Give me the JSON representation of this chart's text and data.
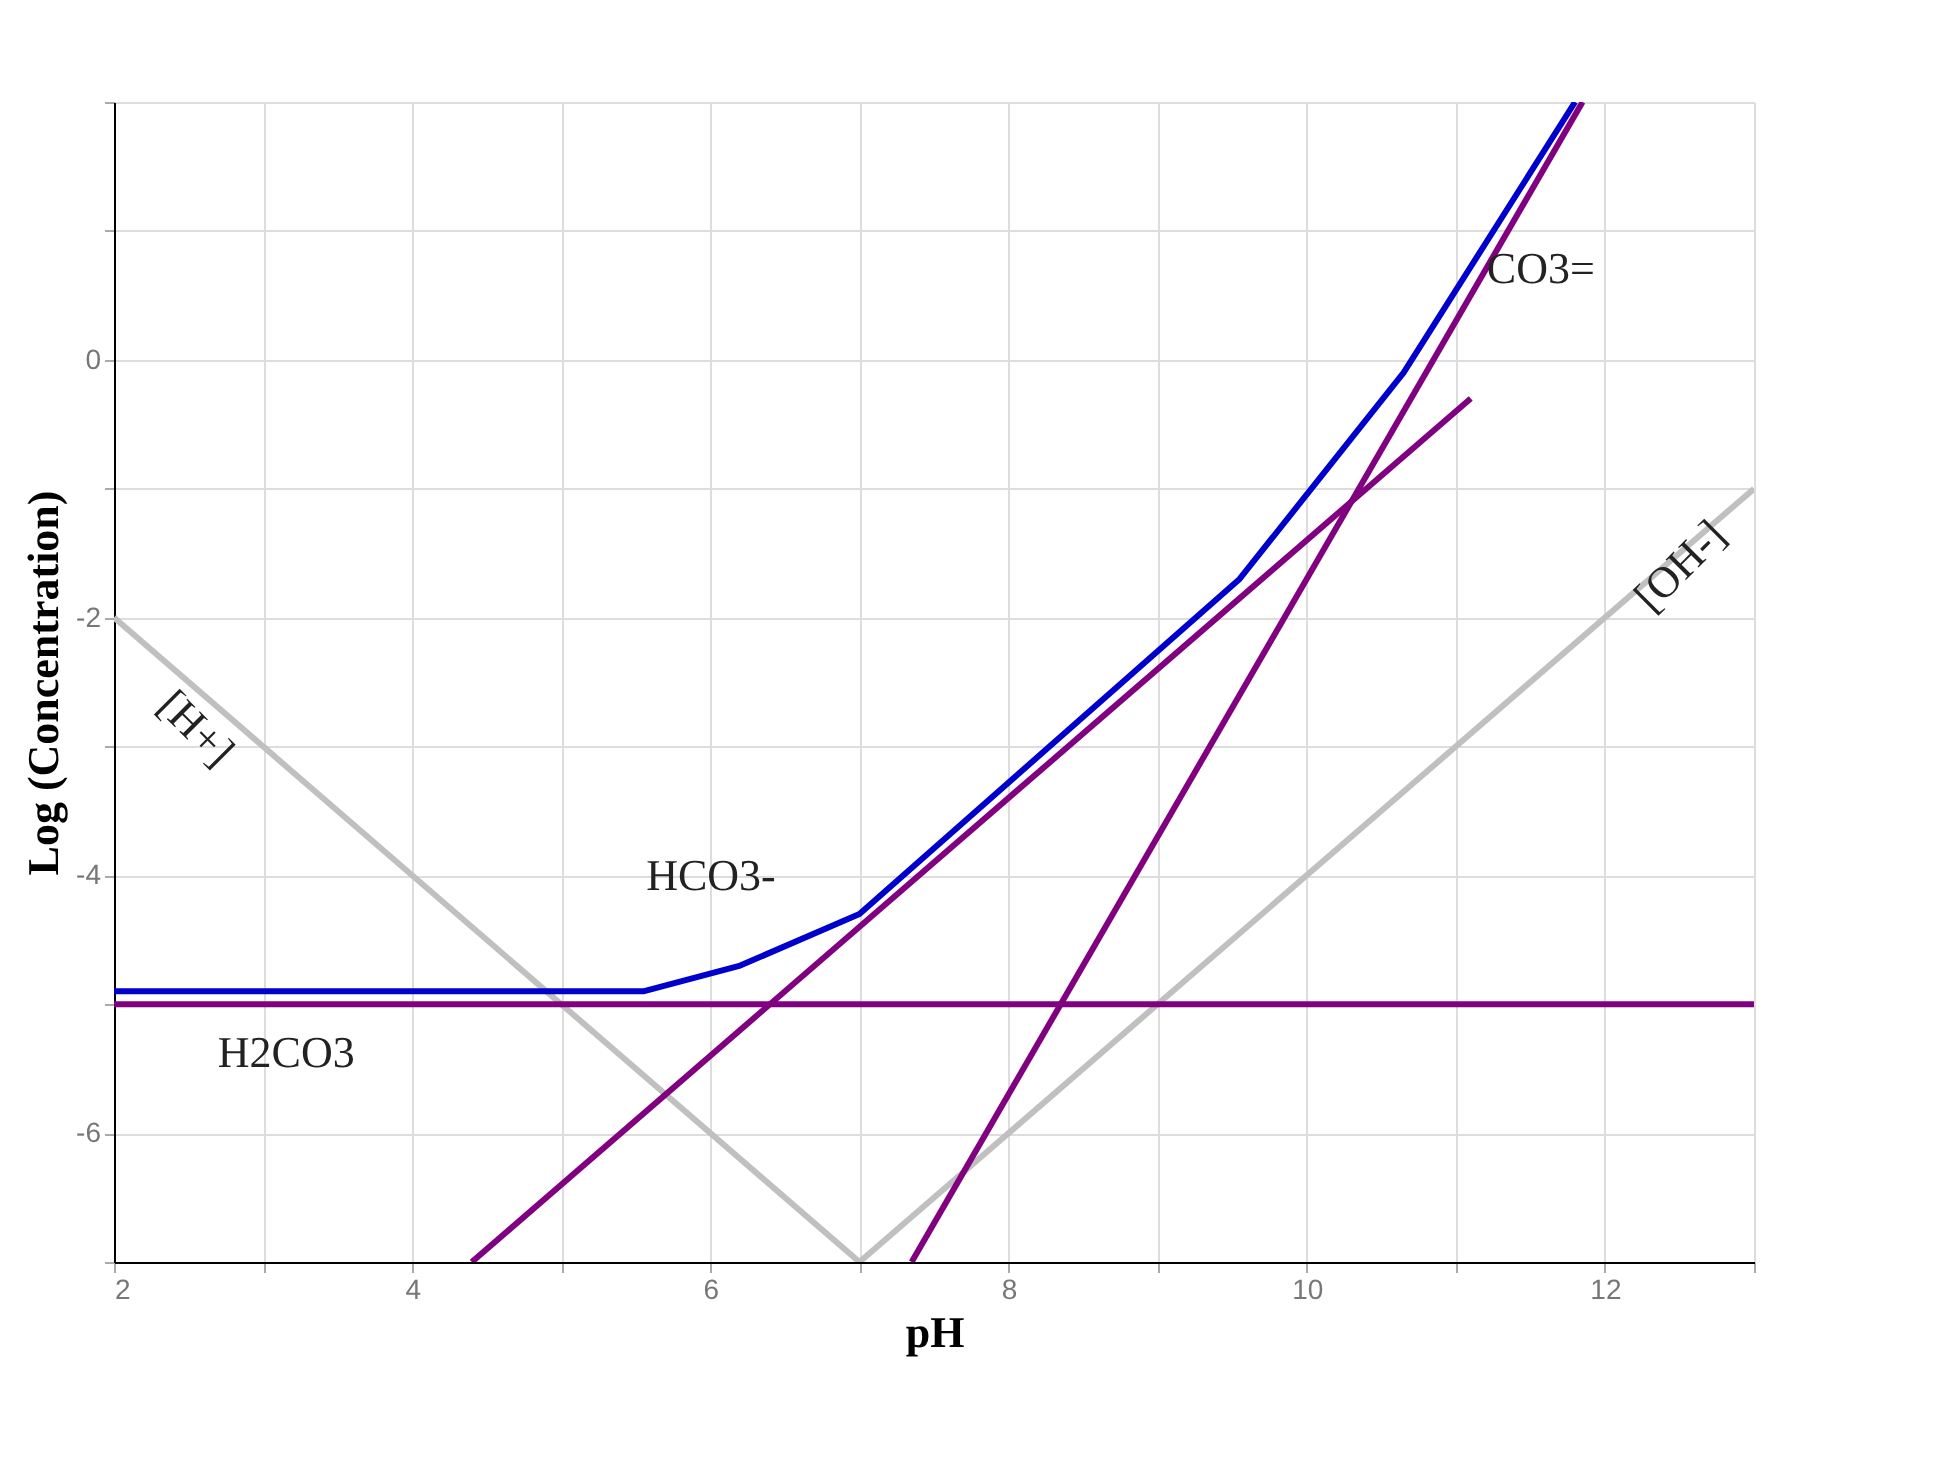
{
  "chart_data": {
    "type": "line",
    "xlabel": "pH",
    "ylabel": "Log (Concentration)",
    "xlim": [
      2,
      13
    ],
    "ylim": [
      -7,
      2
    ],
    "xticks": [
      2,
      {
        "value": 3,
        "label": null
      },
      4,
      {
        "value": 5,
        "label": null
      },
      6,
      {
        "value": 7,
        "label": null
      },
      8,
      {
        "value": 9,
        "label": null
      },
      10,
      {
        "value": 11,
        "label": null
      },
      12,
      {
        "value": 13,
        "label": null
      }
    ],
    "yticks": [
      {
        "value": -7,
        "label": null
      },
      -6,
      {
        "value": -5,
        "label": null
      },
      -4,
      {
        "value": -3,
        "label": null
      },
      -2,
      {
        "value": -1,
        "label": null
      },
      0,
      {
        "value": 1,
        "label": null
      },
      {
        "value": 2,
        "label": null
      }
    ],
    "grid": true,
    "marker": "none",
    "line_style": "solid",
    "series": [
      {
        "color": "#c0c0c0",
        "x": [
          2,
          7
        ],
        "values": [
          -2,
          -7
        ]
      },
      {
        "color": "#c0c0c0",
        "x": [
          7,
          13
        ],
        "values": [
          -7,
          -1
        ]
      },
      {
        "color": "#800080",
        "x": [
          2,
          13
        ],
        "values": [
          -5,
          -5
        ]
      },
      {
        "color": "#800080",
        "x": [
          4.4,
          11.1
        ],
        "values": [
          -7,
          -0.3
        ]
      },
      {
        "color": "#800080",
        "x": [
          7.35,
          11.85
        ],
        "values": [
          -7,
          2
        ]
      },
      {
        "color": "#0000cc",
        "x": [
          2,
          5.55,
          6.2,
          7,
          9.55,
          10.65,
          11.8
        ],
        "values": [
          -4.9,
          -4.9,
          -4.7,
          -4.3,
          -1.7,
          -0.1,
          2
        ]
      }
    ],
    "annotations": [
      "CO3=",
      "[OH-]",
      "[H+]",
      "HCO3-",
      "H2CO3"
    ]
  }
}
